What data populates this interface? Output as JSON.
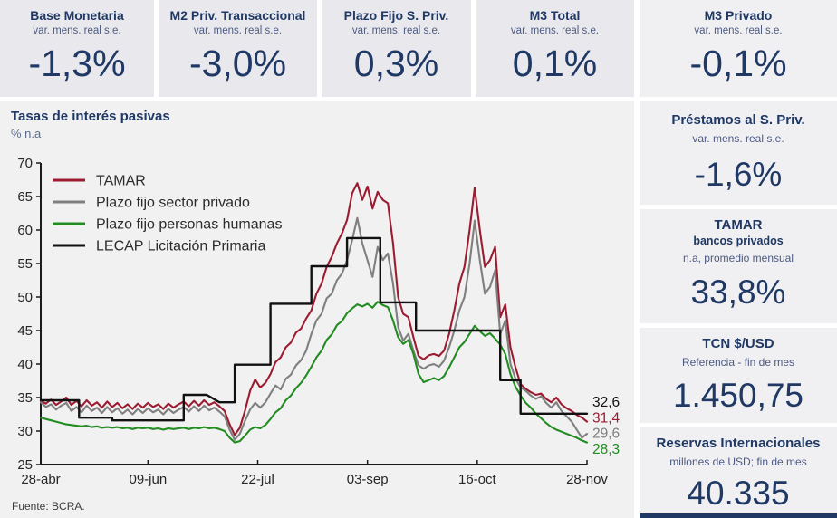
{
  "colors": {
    "navy": "#1f3864",
    "card_bg": "#e9e9ed",
    "panel_bg": "#f1f1f2",
    "tamar": "#9b1b30",
    "plazo_privado": "#7f7f7f",
    "plazo_humanas": "#228b22",
    "lecap": "#111111"
  },
  "top_cards": [
    {
      "title": "Base Monetaria",
      "subtitle": "var. mens. real s.e.",
      "value": "-1,3%"
    },
    {
      "title": "M2 Priv. Transaccional",
      "subtitle": "var. mens. real s.e.",
      "value": "-3,0%"
    },
    {
      "title": "Plazo Fijo S. Priv.",
      "subtitle": "var. mens. real s.e.",
      "value": "0,3%"
    },
    {
      "title": "M3 Total",
      "subtitle": "var. mens. real s.e.",
      "value": "0,1%"
    },
    {
      "title": "M3 Privado",
      "subtitle": "var. mens. real s.e.",
      "value": "-0,1%"
    }
  ],
  "sidebar": {
    "cards": [
      {
        "title": "Préstamos al S. Priv.",
        "subtitle": "var. mens. real s.e.",
        "value": "-1,6%"
      },
      {
        "title": "TAMAR",
        "subtitle2": "bancos privados",
        "subtitle": "n.a, promedio mensual",
        "value": "33,8%"
      },
      {
        "title": "TCN $/USD",
        "subtitle": "Referencia - fin de mes",
        "value": "1.450,75"
      },
      {
        "title": "Reservas Internacionales",
        "subtitle": "millones de USD; fin de mes",
        "value": "40.335"
      }
    ]
  },
  "chart": {
    "title": "Tasas de interés pasivas",
    "unit": "% n.a",
    "source": "Fuente: BCRA."
  },
  "chart_data": {
    "type": "line",
    "title": "Tasas de interés pasivas",
    "ylabel": "% n.a",
    "x_domain_days": 214,
    "y_axis": {
      "min": 25,
      "max": 70,
      "ticks": [
        25,
        30,
        35,
        40,
        45,
        50,
        55,
        60,
        65,
        70
      ]
    },
    "x_axis": {
      "ticks": [
        {
          "label": "28-abr",
          "day": 0
        },
        {
          "label": "09-jun",
          "day": 42
        },
        {
          "label": "22-jul",
          "day": 85
        },
        {
          "label": "03-sep",
          "day": 128
        },
        {
          "label": "16-oct",
          "day": 171
        },
        {
          "label": "28-nov",
          "day": 214
        }
      ]
    },
    "legend_position": "top-left-inside",
    "grid": false,
    "series": [
      {
        "id": "tamar",
        "name": "TAMAR",
        "color": "#9b1b30",
        "x_step_days": 2,
        "values": [
          34.5,
          34.1,
          34.7,
          33.9,
          34.4,
          35.0,
          33.9,
          34.5,
          33.7,
          34.6,
          33.8,
          34.3,
          33.5,
          34.4,
          33.6,
          34.2,
          33.4,
          34.0,
          33.3,
          34.1,
          33.5,
          34.2,
          33.6,
          34.0,
          33.3,
          34.1,
          33.5,
          34.0,
          34.4,
          33.7,
          34.5,
          33.8,
          34.6,
          33.9,
          34.3,
          33.7,
          33.0,
          31.0,
          29.4,
          30.5,
          33.0,
          36.0,
          37.7,
          36.5,
          37.2,
          38.5,
          40.3,
          41.0,
          42.5,
          43.2,
          44.7,
          45.3,
          46.8,
          48.0,
          50.5,
          52.0,
          54.5,
          56.0,
          58.0,
          59.5,
          61.5,
          65.5,
          67.0,
          64.5,
          66.5,
          63.2,
          65.7,
          64.5,
          64.0,
          58.0,
          50.0,
          47.5,
          47.0,
          44.0,
          41.2,
          40.7,
          41.3,
          41.5,
          41.2,
          42.0,
          44.5,
          48.0,
          52.0,
          54.5,
          60.0,
          66.3,
          60.0,
          54.5,
          55.5,
          57.5,
          47.0,
          48.9,
          42.5,
          39.5,
          37.0,
          36.3,
          35.8,
          35.4,
          35.6,
          34.8,
          34.3,
          35.0,
          34.0,
          33.4,
          33.0,
          32.4,
          32.0,
          31.4
        ]
      },
      {
        "id": "plazo-fijo-sector-privado",
        "name": "Plazo fijo sector privado",
        "color": "#7f7f7f",
        "x_step_days": 2,
        "values": [
          34.3,
          33.6,
          34.0,
          33.2,
          33.8,
          34.2,
          33.0,
          33.6,
          32.8,
          33.8,
          33.0,
          33.5,
          32.7,
          33.6,
          32.8,
          33.4,
          32.6,
          33.2,
          32.5,
          33.3,
          32.7,
          33.4,
          32.8,
          33.2,
          32.5,
          33.3,
          32.7,
          33.2,
          33.6,
          32.9,
          33.7,
          33.0,
          33.8,
          33.1,
          33.5,
          32.9,
          32.2,
          30.2,
          28.7,
          29.6,
          31.5,
          33.2,
          34.2,
          33.5,
          34.3,
          35.6,
          36.8,
          36.2,
          37.8,
          38.4,
          39.8,
          40.6,
          42.0,
          44.5,
          46.5,
          47.5,
          49.8,
          50.5,
          52.5,
          53.5,
          55.5,
          58.5,
          61.8,
          58.0,
          55.5,
          53.0,
          57.5,
          55.5,
          56.5,
          52.0,
          45.5,
          43.5,
          44.5,
          42.0,
          39.8,
          39.3,
          39.8,
          40.0,
          39.6,
          40.5,
          42.5,
          45.0,
          48.0,
          50.0,
          55.0,
          61.4,
          55.5,
          50.5,
          51.5,
          54.0,
          44.5,
          46.5,
          40.0,
          37.8,
          36.5,
          36.0,
          35.3,
          34.8,
          35.2,
          34.2,
          33.5,
          34.3,
          33.0,
          32.2,
          31.4,
          30.2,
          29.0,
          29.6
        ]
      },
      {
        "id": "plazo-fijo-personas-humanas",
        "name": "Plazo fijo personas humanas",
        "color": "#228b22",
        "x_step_days": 2,
        "values": [
          32.0,
          31.8,
          31.6,
          31.4,
          31.2,
          31.0,
          30.9,
          30.8,
          30.7,
          30.8,
          30.6,
          30.7,
          30.5,
          30.6,
          30.5,
          30.6,
          30.4,
          30.5,
          30.3,
          30.5,
          30.4,
          30.5,
          30.3,
          30.4,
          30.2,
          30.4,
          30.3,
          30.4,
          30.5,
          30.3,
          30.5,
          30.4,
          30.6,
          30.4,
          30.5,
          30.3,
          30.0,
          29.0,
          28.3,
          28.5,
          29.3,
          30.2,
          30.6,
          30.4,
          30.9,
          31.8,
          32.8,
          33.4,
          34.6,
          35.3,
          36.4,
          37.2,
          38.3,
          39.6,
          41.0,
          42.0,
          43.6,
          44.4,
          45.8,
          46.4,
          47.6,
          48.3,
          48.9,
          48.6,
          49.0,
          48.4,
          49.3,
          48.8,
          48.5,
          46.5,
          44.0,
          43.0,
          43.6,
          41.5,
          38.5,
          37.3,
          37.6,
          37.9,
          37.6,
          38.2,
          39.5,
          41.0,
          42.5,
          43.3,
          44.5,
          45.7,
          44.9,
          44.2,
          44.6,
          43.8,
          42.9,
          41.5,
          38.5,
          36.6,
          35.3,
          34.2,
          33.5,
          32.6,
          31.9,
          31.2,
          30.6,
          30.2,
          29.9,
          29.6,
          29.3,
          29.0,
          28.6,
          28.3
        ]
      },
      {
        "id": "lecap",
        "name": "LECAP Licitación Primaria",
        "color": "#111111",
        "step": true,
        "points": [
          [
            0,
            34.6
          ],
          [
            15,
            34.6
          ],
          [
            15,
            32.0
          ],
          [
            28,
            32.0
          ],
          [
            28,
            31.6
          ],
          [
            56,
            31.6
          ],
          [
            56,
            35.4
          ],
          [
            65,
            35.4
          ],
          [
            70,
            34.3
          ],
          [
            76,
            34.3
          ],
          [
            76,
            39.9
          ],
          [
            90,
            39.9
          ],
          [
            90,
            49.0
          ],
          [
            106,
            49.0
          ],
          [
            106,
            54.6
          ],
          [
            120,
            54.6
          ],
          [
            120,
            58.8
          ],
          [
            133,
            58.8
          ],
          [
            133,
            49.2
          ],
          [
            147,
            49.2
          ],
          [
            147,
            45.0
          ],
          [
            180,
            45.0
          ],
          [
            180,
            37.6
          ],
          [
            188,
            37.6
          ],
          [
            188,
            32.6
          ],
          [
            214,
            32.6
          ]
        ]
      }
    ],
    "end_labels": [
      {
        "text": "32,6",
        "color": "#111111",
        "series": "lecap"
      },
      {
        "text": "31,4",
        "color": "#9b1b30",
        "series": "tamar"
      },
      {
        "text": "29,6",
        "color": "#7f7f7f",
        "series": "plazo-fijo-sector-privado"
      },
      {
        "text": "28,3",
        "color": "#228b22",
        "series": "plazo-fijo-personas-humanas"
      }
    ],
    "source": "Fuente: BCRA."
  }
}
